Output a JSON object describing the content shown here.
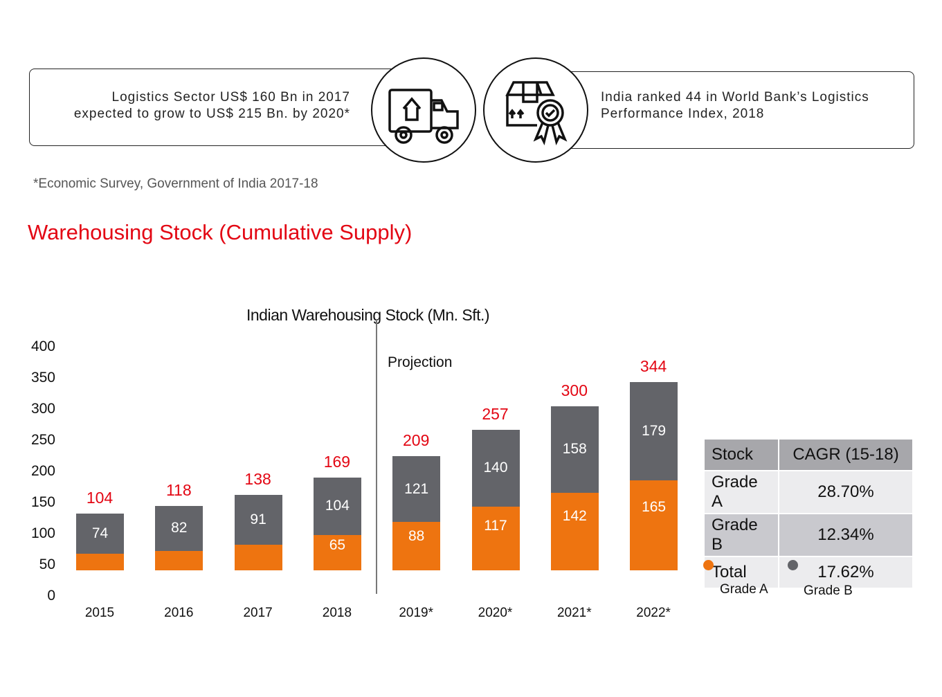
{
  "info_left": {
    "line1": "Logistics Sector US$ 160 Bn in 2017",
    "line2": "expected to grow to US$ 215 Bn. by 2020*"
  },
  "info_right": {
    "line1": "India ranked 44 in World Bank’s Logistics",
    "line2": "Performance Index, 2018"
  },
  "footnote": "*Economic Survey, Government of India 2017-18",
  "section_title": "Warehousing Stock (Cumulative Supply)",
  "colors": {
    "grade_a": "#ee7410",
    "grade_b": "#636469",
    "total": "#e30613"
  },
  "chart_data": {
    "type": "bar",
    "title": "Indian Warehousing Stock (Mn. Sft.)",
    "annotation": "Projection",
    "ylim": [
      0,
      400
    ],
    "yticks": [
      "400",
      "350",
      "300",
      "250",
      "200",
      "150",
      "100",
      "50",
      "0"
    ],
    "categories": [
      "2015",
      "2016",
      "2017",
      "2018",
      "2019*",
      "2020*",
      "2021*",
      "2022*"
    ],
    "totals": [
      104,
      118,
      138,
      169,
      209,
      257,
      300,
      344
    ],
    "series": [
      {
        "name": "Grade A",
        "values": [
          30,
          36,
          47,
          65,
          88,
          117,
          142,
          165
        ]
      },
      {
        "name": "Grade B",
        "values": [
          74,
          82,
          91,
          104,
          121,
          140,
          158,
          179
        ]
      }
    ],
    "legend": [
      "Grade A",
      "Grade B"
    ]
  },
  "cagr_table": {
    "headers": [
      "Stock",
      "CAGR (15-18)"
    ],
    "rows": [
      [
        "Grade A",
        "28.70%"
      ],
      [
        "Grade B",
        "12.34%"
      ],
      [
        "Total",
        "17.62%"
      ]
    ]
  }
}
